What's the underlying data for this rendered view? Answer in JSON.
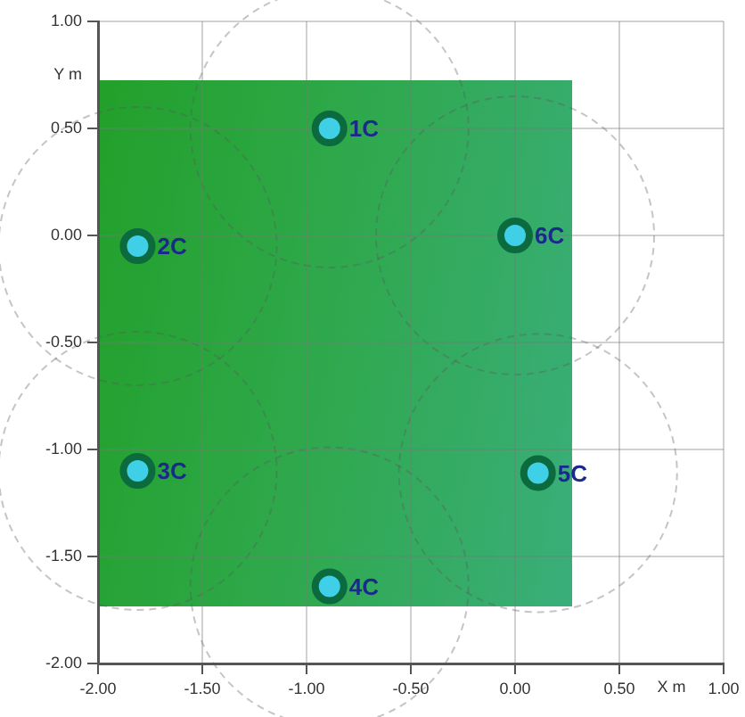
{
  "chart_data": {
    "type": "scatter",
    "xlabel": "X m",
    "ylabel": "Y m",
    "x": [
      -0.89,
      -1.81,
      -1.81,
      -0.89,
      0.11,
      0.0
    ],
    "series": [
      {
        "color": "#0b6b3e",
        "values": [
          0.5,
          -0.05,
          -1.1,
          -1.64,
          -1.11,
          0.0
        ]
      }
    ],
    "xlim": [
      -2.0,
      1.0
    ],
    "xticks": [
      {
        "value": -2.0,
        "label": "-2.00"
      },
      {
        "value": -1.5,
        "label": "-1.50"
      },
      {
        "value": -1.0,
        "label": "-1.00"
      },
      {
        "value": -0.5,
        "label": "-0.50"
      },
      {
        "value": 0.0,
        "label": "0.00"
      },
      {
        "value": 0.5,
        "label": "0.50"
      },
      {
        "value": 1.0,
        "label": "1.00"
      }
    ],
    "ylim": [
      -2.0,
      1.0
    ],
    "yticks": [
      {
        "value": -2.0,
        "label": "-2.00"
      },
      {
        "value": -1.5,
        "label": "-1.50"
      },
      {
        "value": -1.0,
        "label": "-1.00"
      },
      {
        "value": -0.5,
        "label": "-0.50"
      },
      {
        "value": 0.0,
        "label": "0.00"
      },
      {
        "value": 0.5,
        "label": "0.50"
      },
      {
        "value": 1.0,
        "label": "1.00"
      }
    ],
    "annotations": [
      {
        "text": "1C",
        "x": -0.89,
        "y": 0.5
      },
      {
        "text": "2C",
        "x": -1.81,
        "y": -0.05
      },
      {
        "text": "3C",
        "x": -1.81,
        "y": -1.1
      },
      {
        "text": "4C",
        "x": -0.89,
        "y": -1.64
      },
      {
        "text": "5C",
        "x": 0.11,
        "y": -1.11
      },
      {
        "text": "6C",
        "x": 0.0,
        "y": 0.0
      }
    ],
    "grid": true,
    "marker": "circle",
    "legend": false
  }
}
